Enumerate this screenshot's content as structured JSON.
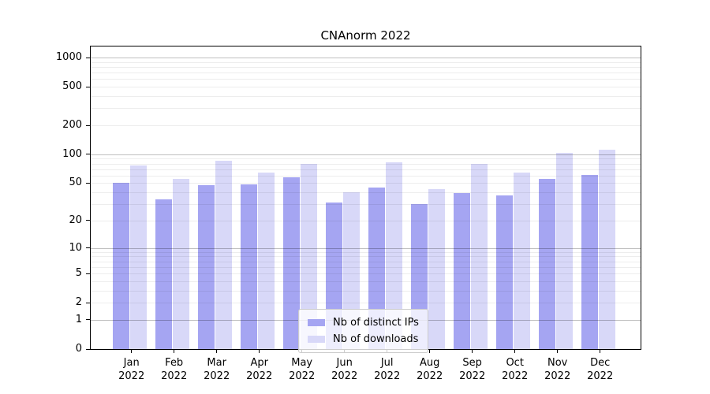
{
  "chart_data": {
    "type": "bar",
    "title": "CNAnorm 2022",
    "year": "2022",
    "months": [
      "Jan",
      "Feb",
      "Mar",
      "Apr",
      "May",
      "Jun",
      "Jul",
      "Aug",
      "Sep",
      "Oct",
      "Nov",
      "Dec"
    ],
    "categories": [
      "Jan 2022",
      "Feb 2022",
      "Mar 2022",
      "Apr 2022",
      "May 2022",
      "Jun 2022",
      "Jul 2022",
      "Aug 2022",
      "Sep 2022",
      "Oct 2022",
      "Nov 2022",
      "Dec 2022"
    ],
    "series": [
      {
        "name": "Nb of distinct IPs",
        "color": "#a5a5f2",
        "values": [
          50,
          34,
          48,
          49,
          58,
          31,
          45,
          30,
          39,
          37,
          55,
          61
        ]
      },
      {
        "name": "Nb of downloads",
        "color": "#d8d8f8",
        "values": [
          77,
          55,
          86,
          64,
          79,
          40,
          83,
          43,
          79,
          65,
          104,
          112
        ]
      }
    ],
    "y_ticks": [
      0,
      1,
      2,
      5,
      10,
      20,
      50,
      100,
      200,
      500,
      1000
    ],
    "y_scale": "log10(1+x)",
    "ylim": [
      0,
      1200
    ],
    "decade_gridlines": [
      1,
      10,
      100,
      1000
    ],
    "grid": "horizontal major + minor log lines",
    "legend_position": "bottom-center-inside",
    "xlabel": "",
    "ylabel": ""
  },
  "colors": {
    "distinct_ips": "#a5a5f2",
    "downloads": "#d8d8f8",
    "major_grid": "rgba(0,0,0,0.25)",
    "minor_grid": "rgba(0,0,0,0.07)",
    "spine": "#000000",
    "background": "#ffffff",
    "legend_border": "#cccccc"
  }
}
